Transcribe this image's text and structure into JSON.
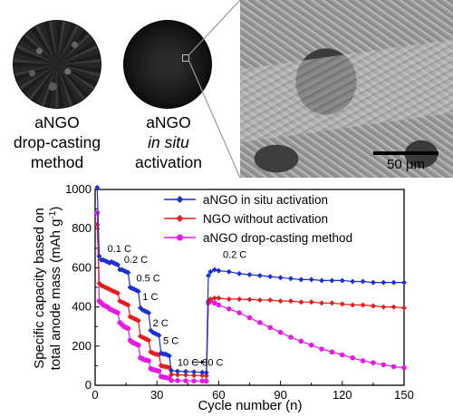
{
  "images": {
    "caption_left": [
      "aNGO",
      "drop-casting",
      "method"
    ],
    "caption_mid_line1": "aNGO",
    "caption_mid_line2": "in situ",
    "caption_mid_line3": "activation",
    "scale_bar": "50 μm"
  },
  "chart_data": {
    "type": "scatter",
    "xlabel": "Cycle number (n)",
    "ylabel_line1": "Specific capacity based on",
    "ylabel_line2": "total anode mass (mAh g",
    "ylabel_sup": "-1",
    "ylabel_tail": ")",
    "xlim": [
      0,
      150
    ],
    "ylim": [
      0,
      1000
    ],
    "xticks": [
      0,
      30,
      60,
      90,
      120,
      150
    ],
    "yticks": [
      0,
      200,
      400,
      600,
      800,
      1000
    ],
    "legend_position": "top-right",
    "series": [
      {
        "name": "aNGO in situ activation",
        "color": "#1a2fd6",
        "marker": "diamond",
        "points": [
          [
            1,
            1010
          ],
          [
            2,
            660
          ],
          [
            3,
            640
          ],
          [
            4,
            640
          ],
          [
            5,
            635
          ],
          [
            6,
            630
          ],
          [
            7,
            625
          ],
          [
            8,
            630
          ],
          [
            9,
            625
          ],
          [
            10,
            620
          ],
          [
            11,
            615
          ],
          [
            12,
            590
          ],
          [
            13,
            590
          ],
          [
            14,
            585
          ],
          [
            15,
            580
          ],
          [
            16,
            575
          ],
          [
            17,
            500
          ],
          [
            18,
            495
          ],
          [
            19,
            490
          ],
          [
            20,
            485
          ],
          [
            21,
            480
          ],
          [
            22,
            395
          ],
          [
            23,
            385
          ],
          [
            24,
            380
          ],
          [
            25,
            375
          ],
          [
            26,
            370
          ],
          [
            27,
            280
          ],
          [
            28,
            270
          ],
          [
            29,
            265
          ],
          [
            30,
            260
          ],
          [
            31,
            255
          ],
          [
            32,
            165
          ],
          [
            33,
            160
          ],
          [
            34,
            160
          ],
          [
            35,
            155
          ],
          [
            36,
            150
          ],
          [
            37,
            75
          ],
          [
            40,
            72
          ],
          [
            44,
            70
          ],
          [
            48,
            68
          ],
          [
            52,
            66
          ],
          [
            54,
            65
          ],
          [
            55,
            560
          ],
          [
            56,
            580
          ],
          [
            58,
            590
          ],
          [
            60,
            585
          ],
          [
            65,
            580
          ],
          [
            70,
            570
          ],
          [
            75,
            565
          ],
          [
            80,
            560
          ],
          [
            85,
            555
          ],
          [
            90,
            550
          ],
          [
            95,
            545
          ],
          [
            100,
            540
          ],
          [
            105,
            540
          ],
          [
            110,
            535
          ],
          [
            115,
            535
          ],
          [
            120,
            535
          ],
          [
            125,
            530
          ],
          [
            130,
            530
          ],
          [
            135,
            525
          ],
          [
            140,
            525
          ],
          [
            145,
            525
          ],
          [
            150,
            525
          ]
        ]
      },
      {
        "name": "NGO without activation",
        "color": "#e81a1a",
        "marker": "diamond",
        "points": [
          [
            1,
            820
          ],
          [
            2,
            520
          ],
          [
            3,
            510
          ],
          [
            4,
            505
          ],
          [
            5,
            500
          ],
          [
            6,
            495
          ],
          [
            7,
            490
          ],
          [
            8,
            485
          ],
          [
            9,
            480
          ],
          [
            10,
            475
          ],
          [
            11,
            470
          ],
          [
            12,
            430
          ],
          [
            13,
            425
          ],
          [
            14,
            420
          ],
          [
            15,
            415
          ],
          [
            16,
            410
          ],
          [
            17,
            350
          ],
          [
            18,
            345
          ],
          [
            19,
            340
          ],
          [
            20,
            335
          ],
          [
            21,
            330
          ],
          [
            22,
            250
          ],
          [
            23,
            245
          ],
          [
            24,
            240
          ],
          [
            25,
            235
          ],
          [
            26,
            230
          ],
          [
            27,
            170
          ],
          [
            28,
            165
          ],
          [
            29,
            160
          ],
          [
            30,
            158
          ],
          [
            31,
            155
          ],
          [
            32,
            100
          ],
          [
            33,
            97
          ],
          [
            34,
            95
          ],
          [
            35,
            93
          ],
          [
            36,
            90
          ],
          [
            37,
            55
          ],
          [
            40,
            53
          ],
          [
            44,
            52
          ],
          [
            48,
            50
          ],
          [
            52,
            50
          ],
          [
            54,
            48
          ],
          [
            55,
            430
          ],
          [
            56,
            440
          ],
          [
            58,
            445
          ],
          [
            60,
            445
          ],
          [
            65,
            440
          ],
          [
            70,
            440
          ],
          [
            75,
            438
          ],
          [
            80,
            435
          ],
          [
            85,
            435
          ],
          [
            90,
            430
          ],
          [
            95,
            430
          ],
          [
            100,
            425
          ],
          [
            105,
            425
          ],
          [
            110,
            420
          ],
          [
            115,
            420
          ],
          [
            120,
            415
          ],
          [
            125,
            410
          ],
          [
            130,
            410
          ],
          [
            135,
            405
          ],
          [
            140,
            400
          ],
          [
            145,
            400
          ],
          [
            150,
            395
          ]
        ]
      },
      {
        "name": "aNGO drop-casting method",
        "color": "#e619e6",
        "marker": "circle",
        "points": [
          [
            1,
            880
          ],
          [
            2,
            430
          ],
          [
            3,
            420
          ],
          [
            4,
            410
          ],
          [
            5,
            405
          ],
          [
            6,
            400
          ],
          [
            7,
            390
          ],
          [
            8,
            385
          ],
          [
            9,
            380
          ],
          [
            10,
            375
          ],
          [
            11,
            370
          ],
          [
            12,
            320
          ],
          [
            13,
            310
          ],
          [
            14,
            300
          ],
          [
            15,
            295
          ],
          [
            16,
            290
          ],
          [
            17,
            230
          ],
          [
            18,
            220
          ],
          [
            19,
            215
          ],
          [
            20,
            210
          ],
          [
            21,
            205
          ],
          [
            22,
            140
          ],
          [
            23,
            135
          ],
          [
            24,
            130
          ],
          [
            25,
            128
          ],
          [
            26,
            125
          ],
          [
            27,
            85
          ],
          [
            28,
            80
          ],
          [
            29,
            78
          ],
          [
            30,
            75
          ],
          [
            31,
            72
          ],
          [
            32,
            45
          ],
          [
            33,
            42
          ],
          [
            34,
            40
          ],
          [
            35,
            38
          ],
          [
            36,
            36
          ],
          [
            37,
            25
          ],
          [
            40,
            24
          ],
          [
            44,
            23
          ],
          [
            48,
            22
          ],
          [
            52,
            22
          ],
          [
            54,
            21
          ],
          [
            55,
            420
          ],
          [
            56,
            430
          ],
          [
            58,
            420
          ],
          [
            60,
            410
          ],
          [
            65,
            390
          ],
          [
            70,
            370
          ],
          [
            75,
            345
          ],
          [
            80,
            320
          ],
          [
            85,
            295
          ],
          [
            90,
            270
          ],
          [
            95,
            245
          ],
          [
            100,
            225
          ],
          [
            105,
            205
          ],
          [
            110,
            185
          ],
          [
            115,
            170
          ],
          [
            120,
            155
          ],
          [
            125,
            140
          ],
          [
            130,
            125
          ],
          [
            135,
            115
          ],
          [
            140,
            105
          ],
          [
            145,
            95
          ],
          [
            150,
            90
          ]
        ]
      }
    ],
    "annotations": {
      "rates": [
        {
          "text": "0.1 C",
          "x": 6,
          "y": 680
        },
        {
          "text": "0.2 C",
          "x": 14,
          "y": 625
        },
        {
          "text": "0.5 C",
          "x": 20,
          "y": 530
        },
        {
          "text": "1 C",
          "x": 23,
          "y": 435
        },
        {
          "text": "2 C",
          "x": 28,
          "y": 300
        },
        {
          "text": "5 C",
          "x": 33,
          "y": 210
        },
        {
          "text": "10 C",
          "x": 40,
          "y": 100
        },
        {
          "text": "30 C",
          "x": 52,
          "y": 100
        },
        {
          "text": "0.2 C",
          "x": 62,
          "y": 650
        }
      ]
    }
  }
}
